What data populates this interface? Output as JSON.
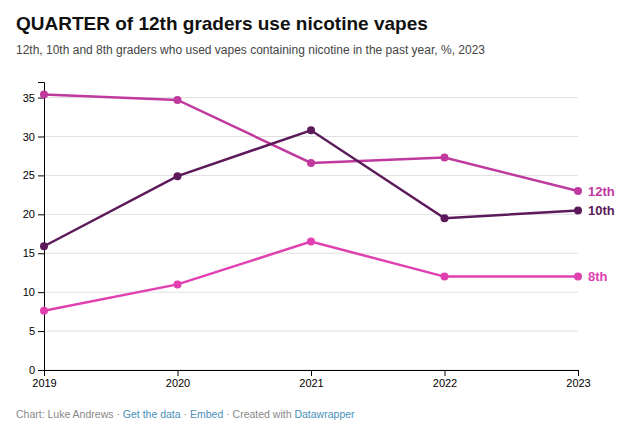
{
  "chart_data": {
    "type": "line",
    "title": "QUARTER of 12th graders use nicotine vapes",
    "subtitle": "12th, 10th and 8th graders who used vapes containing nicotine in the past year, %, 2023",
    "x": [
      2019,
      2020,
      2021,
      2022,
      2023
    ],
    "series": [
      {
        "name": "12th",
        "color": "#c0399e",
        "values": [
          35.4,
          34.7,
          26.6,
          27.3,
          23.0
        ]
      },
      {
        "name": "10th",
        "color": "#5c1a5a",
        "values": [
          15.9,
          24.9,
          30.8,
          19.5,
          20.5
        ]
      },
      {
        "name": "8th",
        "color": "#e040b0",
        "values": [
          7.6,
          11.0,
          16.5,
          12.0,
          12.0
        ]
      }
    ],
    "marker": "circle",
    "xlim": [
      2019,
      2023
    ],
    "xticks": [
      2019,
      2020,
      2021,
      2022,
      2023
    ],
    "ylim": [
      0,
      37
    ],
    "yticks": [
      0,
      5,
      10,
      15,
      20,
      25,
      30,
      35
    ],
    "grid": true,
    "footer": [
      {
        "text": "Chart: Luke Andrews · ",
        "color": "#888888"
      },
      {
        "text": "Get the data",
        "color": "#4a90b8"
      },
      {
        "text": " · ",
        "color": "#888888"
      },
      {
        "text": "Embed",
        "color": "#4a90b8"
      },
      {
        "text": " · Created with ",
        "color": "#888888"
      },
      {
        "text": "Datawrapper",
        "color": "#4a90b8"
      }
    ]
  }
}
